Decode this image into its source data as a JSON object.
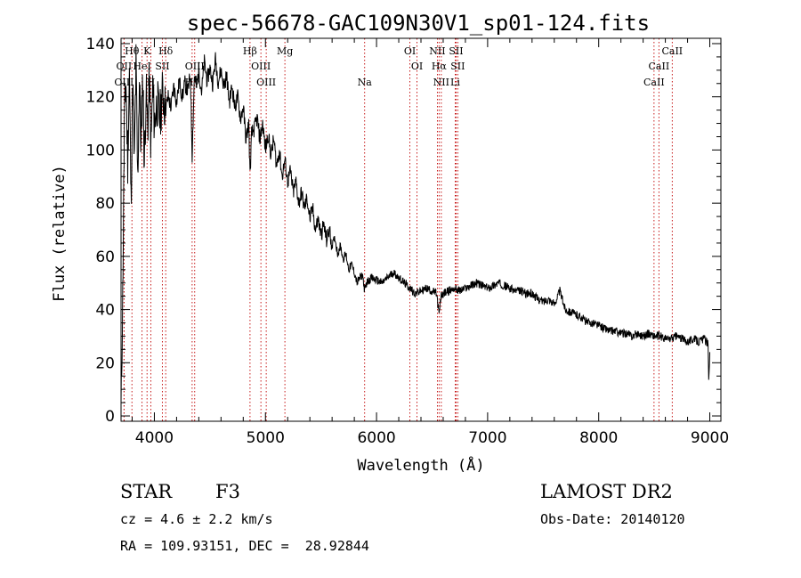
{
  "chart_data": {
    "type": "line",
    "title": "spec-56678-GAC109N30V1_sp01-124.fits",
    "xlabel": "Wavelength (Å)",
    "ylabel": "Flux (relative)",
    "xlim": [
      3700,
      9100
    ],
    "ylim": [
      -2,
      142
    ],
    "xticks": [
      4000,
      5000,
      6000,
      7000,
      8000,
      9000
    ],
    "yticks": [
      0,
      20,
      40,
      60,
      80,
      100,
      120,
      140
    ],
    "grid": false,
    "series": [
      {
        "color": "#000000",
        "x": [
          3700,
          3715,
          3730,
          3745,
          3760,
          3775,
          3790,
          3805,
          3820,
          3835,
          3850,
          3865,
          3880,
          3895,
          3910,
          3925,
          3940,
          3955,
          3970,
          3985,
          4000,
          4025,
          4050,
          4075,
          4100,
          4125,
          4150,
          4175,
          4200,
          4225,
          4250,
          4275,
          4300,
          4325,
          4340,
          4360,
          4380,
          4400,
          4425,
          4450,
          4475,
          4500,
          4525,
          4550,
          4575,
          4600,
          4625,
          4650,
          4675,
          4700,
          4725,
          4750,
          4775,
          4800,
          4825,
          4850,
          4861,
          4875,
          4900,
          4925,
          4950,
          4975,
          5000,
          5025,
          5050,
          5075,
          5100,
          5125,
          5150,
          5175,
          5200,
          5225,
          5250,
          5275,
          5300,
          5325,
          5350,
          5375,
          5400,
          5425,
          5450,
          5475,
          5500,
          5525,
          5550,
          5575,
          5600,
          5625,
          5650,
          5675,
          5700,
          5725,
          5750,
          5775,
          5800,
          5825,
          5850,
          5875,
          5893,
          5910,
          5950,
          6000,
          6050,
          6100,
          6150,
          6200,
          6250,
          6300,
          6350,
          6400,
          6450,
          6500,
          6540,
          6563,
          6580,
          6600,
          6650,
          6700,
          6750,
          6800,
          6850,
          6900,
          6950,
          7000,
          7050,
          7100,
          7150,
          7200,
          7250,
          7300,
          7350,
          7400,
          7450,
          7500,
          7550,
          7600,
          7650,
          7700,
          7750,
          7800,
          7850,
          7900,
          7950,
          8000,
          8050,
          8100,
          8150,
          8200,
          8250,
          8300,
          8350,
          8400,
          8450,
          8500,
          8550,
          8600,
          8650,
          8700,
          8750,
          8800,
          8850,
          8900,
          8950,
          8985,
          8990,
          9000
        ],
        "y": [
          2,
          45,
          110,
          125,
          95,
          130,
          80,
          125,
          95,
          132,
          88,
          128,
          100,
          130,
          95,
          122,
          108,
          126,
          100,
          124,
          110,
          118,
          112,
          122,
          115,
          120,
          116,
          124,
          118,
          126,
          120,
          125,
          122,
          128,
          98,
          128,
          124,
          130,
          122,
          133,
          126,
          131,
          125,
          134,
          126,
          130,
          124,
          128,
          118,
          124,
          116,
          120,
          112,
          116,
          104,
          110,
          90,
          106,
          108,
          112,
          104,
          110,
          100,
          106,
          98,
          104,
          94,
          100,
          90,
          96,
          88,
          92,
          84,
          88,
          80,
          84,
          78,
          82,
          74,
          78,
          70,
          74,
          68,
          72,
          66,
          70,
          64,
          67,
          61,
          64,
          59,
          61,
          55,
          57,
          54,
          50,
          52,
          53,
          47,
          50,
          52,
          51,
          50,
          52,
          54,
          52,
          50,
          48,
          46,
          47,
          48,
          47,
          46,
          38,
          45,
          46,
          47,
          48,
          47,
          48,
          49,
          50,
          49,
          48,
          49,
          50,
          49,
          48,
          47,
          47,
          46,
          46,
          44,
          43,
          44,
          42,
          47,
          40,
          39,
          38,
          37,
          35,
          35,
          34,
          33,
          32,
          32,
          31,
          31,
          30,
          31,
          30,
          31,
          30,
          30,
          29,
          29,
          30,
          29,
          28,
          29,
          28,
          29,
          27,
          14,
          24
        ],
        "noise_seed": 11
      }
    ],
    "spectral_lines": [
      {
        "name": "Hθ",
        "x": 3798,
        "row": 1
      },
      {
        "name": "OII",
        "x": 3727,
        "row": 2
      },
      {
        "name": "OIII",
        "x": 3727,
        "row": 3
      },
      {
        "name": "HeI",
        "x": 3889,
        "row": 2
      },
      {
        "name": "K",
        "x": 3934,
        "row": 1
      },
      {
        "name": "H",
        "x": 3969,
        "row": 3
      },
      {
        "name": "SII",
        "x": 4072,
        "row": 2
      },
      {
        "name": "Hδ",
        "x": 4102,
        "row": 1
      },
      {
        "name": "OIII",
        "x": 4363,
        "row": 2
      },
      {
        "name": "Hγ",
        "x": 4340,
        "row": 3
      },
      {
        "name": "Hβ",
        "x": 4861,
        "row": 1
      },
      {
        "name": "OIII",
        "x": 4959,
        "row": 2
      },
      {
        "name": "OIII",
        "x": 5007,
        "row": 3
      },
      {
        "name": "Mg",
        "x": 5175,
        "row": 1
      },
      {
        "name": "Na",
        "x": 5893,
        "row": 3
      },
      {
        "name": "OI",
        "x": 6300,
        "row": 1
      },
      {
        "name": "OI",
        "x": 6364,
        "row": 2
      },
      {
        "name": "NII",
        "x": 6548,
        "row": 1
      },
      {
        "name": "Hα",
        "x": 6563,
        "row": 2
      },
      {
        "name": "NII",
        "x": 6583,
        "row": 3
      },
      {
        "name": "SII",
        "x": 6716,
        "row": 1
      },
      {
        "name": "SII",
        "x": 6731,
        "row": 2
      },
      {
        "name": "Li",
        "x": 6708,
        "row": 3
      },
      {
        "name": "CaII",
        "x": 8498,
        "row": 3
      },
      {
        "name": "CaII",
        "x": 8542,
        "row": 2
      },
      {
        "name": "CaII",
        "x": 8662,
        "row": 1
      }
    ]
  },
  "info": {
    "object_class": "STAR",
    "subclass": "F3",
    "survey": "LAMOST DR2",
    "cz": "cz = 4.6 ± 2.2 km/s",
    "obs_date": "Obs-Date: 20140120",
    "coords": "RA = 109.93151, DEC =  28.92844"
  }
}
